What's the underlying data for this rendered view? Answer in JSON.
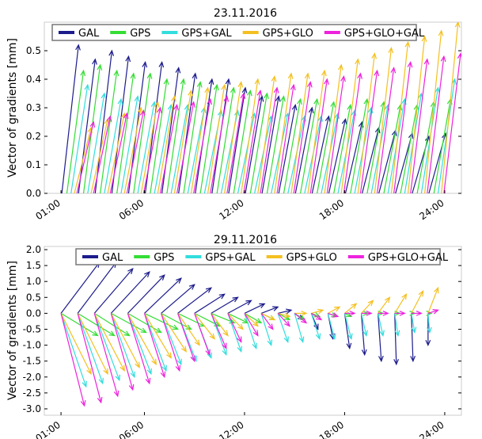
{
  "chart_data": [
    {
      "type": "vector",
      "title": "23.11.2016",
      "ylabel": "Vector of gradients [mm]",
      "xlabel": "",
      "xticks": [
        "01:00",
        "06:00",
        "12:00",
        "18:00",
        "24:00"
      ],
      "xtick_hours": [
        1,
        6,
        12,
        18,
        24
      ],
      "xlim": [
        0,
        25
      ],
      "ylim": [
        0,
        0.6
      ],
      "yticks": [
        0,
        0.1,
        0.2,
        0.3,
        0.4,
        0.5
      ],
      "ytick_labels": [
        "0.0",
        "0.1",
        "0.2",
        "0.3",
        "0.4",
        "0.5"
      ],
      "legend": {
        "position": "top",
        "frame": true
      },
      "series": [
        {
          "name": "GAL",
          "color": "#1c1c8c",
          "dx": 1.0,
          "offset": 0.05,
          "values": [
            0.52,
            0.47,
            0.5,
            0.48,
            0.46,
            0.46,
            0.44,
            0.42,
            0.4,
            0.4,
            0.37,
            0.34,
            0.34,
            0.31,
            0.3,
            0.27,
            0.26,
            0.25,
            0.23,
            0.22,
            0.21,
            0.2,
            0.21
          ]
        },
        {
          "name": "GPS",
          "color": "#33dd33",
          "dx": 1.0,
          "offset": 0.35,
          "values": [
            0.43,
            0.45,
            0.43,
            0.42,
            0.42,
            0.4,
            0.4,
            0.39,
            0.38,
            0.37,
            0.36,
            0.35,
            0.34,
            0.33,
            0.33,
            0.32,
            0.31,
            0.33,
            0.32,
            0.31,
            0.31,
            0.32,
            0.33
          ]
        },
        {
          "name": "GPS+GAL",
          "color": "#33dddd",
          "dx": 1.0,
          "offset": 0.6,
          "values": [
            0.38,
            0.35,
            0.33,
            0.34,
            0.32,
            0.31,
            0.31,
            0.3,
            0.29,
            0.29,
            0.28,
            0.27,
            0.28,
            0.27,
            0.27,
            0.28,
            0.29,
            0.3,
            0.31,
            0.33,
            0.35,
            0.37,
            0.4
          ]
        },
        {
          "name": "GPS+GLO",
          "color": "#f4c020",
          "dx": 1.0,
          "offset": 0.8,
          "values": [
            0.23,
            0.26,
            0.28,
            0.3,
            0.32,
            0.34,
            0.36,
            0.37,
            0.38,
            0.39,
            0.4,
            0.41,
            0.42,
            0.42,
            0.43,
            0.45,
            0.47,
            0.49,
            0.51,
            0.53,
            0.55,
            0.57,
            0.6
          ]
        },
        {
          "name": "GPS+GLO+GAL",
          "color": "#ee22dd",
          "dx": 1.0,
          "offset": 0.95,
          "values": [
            0.25,
            0.27,
            0.28,
            0.29,
            0.3,
            0.31,
            0.32,
            0.33,
            0.34,
            0.35,
            0.36,
            0.37,
            0.38,
            0.39,
            0.4,
            0.41,
            0.42,
            0.43,
            0.44,
            0.46,
            0.47,
            0.48,
            0.49
          ]
        }
      ]
    },
    {
      "type": "vector",
      "title": "29.11.2016",
      "ylabel": "Vector of gradients [mm]",
      "xlabel": "",
      "xticks": [
        "01:00",
        "06:00",
        "12:00",
        "18:00",
        "24:00"
      ],
      "xtick_hours": [
        1,
        6,
        12,
        18,
        24
      ],
      "xlim": [
        0,
        25
      ],
      "ylim": [
        -3.2,
        2.1
      ],
      "yticks": [
        -3.0,
        -2.5,
        -2.0,
        -1.5,
        -1.0,
        -0.5,
        0.0,
        0.5,
        1.0,
        1.5,
        2.0
      ],
      "ytick_labels": [
        "-3.0",
        "-2.5",
        "-2.0",
        "-1.5",
        "-1.0",
        "-0.5",
        "0.0",
        "0.5",
        "1.0",
        "1.5",
        "2.0"
      ],
      "legend": {
        "position": "top",
        "frame": true
      },
      "series": [
        {
          "name": "GAL",
          "color": "#1c1c8c",
          "dx": 2.3,
          "offset": 0,
          "vectors": [
            [
              2.3,
              1.6
            ],
            [
              2.3,
              1.6
            ],
            [
              2.3,
              1.4
            ],
            [
              2.3,
              1.3
            ],
            [
              2.2,
              1.2
            ],
            [
              2.2,
              1.1
            ],
            [
              2.0,
              0.9
            ],
            [
              2.0,
              0.8
            ],
            [
              1.8,
              0.6
            ],
            [
              1.6,
              0.5
            ],
            [
              1.4,
              0.4
            ],
            [
              1.2,
              0.3
            ],
            [
              1.0,
              0.2
            ],
            [
              0.8,
              0.1
            ],
            [
              0.5,
              -0.2
            ],
            [
              0.4,
              -0.5
            ],
            [
              0.3,
              -0.8
            ],
            [
              0.3,
              -1.1
            ],
            [
              0.2,
              -1.3
            ],
            [
              0.2,
              -1.5
            ],
            [
              0.1,
              -1.6
            ],
            [
              0.1,
              -1.5
            ],
            [
              0.0,
              -1.0
            ]
          ]
        },
        {
          "name": "GPS",
          "color": "#33dd33",
          "dx": 2.3,
          "offset": 0,
          "vectors": [
            [
              2.2,
              -0.7
            ],
            [
              2.2,
              -0.7
            ],
            [
              2.1,
              -0.7
            ],
            [
              2.1,
              -0.6
            ],
            [
              2.0,
              -0.6
            ],
            [
              2.0,
              -0.5
            ],
            [
              1.8,
              -0.5
            ],
            [
              1.6,
              -0.4
            ],
            [
              1.5,
              -0.4
            ],
            [
              1.4,
              -0.3
            ],
            [
              1.2,
              -0.3
            ],
            [
              1.0,
              -0.3
            ],
            [
              0.8,
              -0.2
            ],
            [
              0.7,
              -0.2
            ],
            [
              0.6,
              -0.2
            ],
            [
              0.5,
              -0.1
            ],
            [
              0.5,
              -0.1
            ],
            [
              0.4,
              -0.1
            ],
            [
              0.4,
              0.0
            ],
            [
              0.3,
              0.0
            ],
            [
              0.3,
              0.0
            ],
            [
              0.2,
              0.0
            ],
            [
              0.2,
              0.0
            ]
          ]
        },
        {
          "name": "GPS+GAL",
          "color": "#33dddd",
          "dx": 2.3,
          "offset": 0,
          "vectors": [
            [
              1.5,
              -2.3
            ],
            [
              1.5,
              -2.2
            ],
            [
              1.5,
              -2.1
            ],
            [
              1.4,
              -2.0
            ],
            [
              1.4,
              -1.9
            ],
            [
              1.3,
              -1.8
            ],
            [
              1.2,
              -1.6
            ],
            [
              1.1,
              -1.5
            ],
            [
              1.0,
              -1.4
            ],
            [
              0.9,
              -1.3
            ],
            [
              0.8,
              -1.2
            ],
            [
              0.7,
              -1.1
            ],
            [
              0.6,
              -1.0
            ],
            [
              0.6,
              -0.9
            ],
            [
              0.5,
              -0.9
            ],
            [
              0.5,
              -0.8
            ],
            [
              0.4,
              -0.8
            ],
            [
              0.4,
              -0.8
            ],
            [
              0.3,
              -0.7
            ],
            [
              0.3,
              -0.7
            ],
            [
              0.2,
              -0.7
            ],
            [
              0.2,
              -0.6
            ],
            [
              0.1,
              -0.6
            ]
          ]
        },
        {
          "name": "GPS+GLO",
          "color": "#f4c020",
          "dx": 2.3,
          "offset": 0,
          "vectors": [
            [
              1.8,
              -1.9
            ],
            [
              1.8,
              -1.9
            ],
            [
              1.8,
              -1.8
            ],
            [
              1.7,
              -1.7
            ],
            [
              1.7,
              -1.6
            ],
            [
              1.6,
              -1.4
            ],
            [
              1.5,
              -1.2
            ],
            [
              1.3,
              -1.0
            ],
            [
              1.2,
              -0.8
            ],
            [
              1.0,
              -0.7
            ],
            [
              0.9,
              -0.5
            ],
            [
              0.8,
              -0.4
            ],
            [
              0.8,
              -0.2
            ],
            [
              0.7,
              -0.1
            ],
            [
              0.7,
              0.0
            ],
            [
              0.7,
              0.1
            ],
            [
              0.7,
              0.2
            ],
            [
              0.7,
              0.3
            ],
            [
              0.7,
              0.4
            ],
            [
              0.7,
              0.5
            ],
            [
              0.7,
              0.6
            ],
            [
              0.7,
              0.7
            ],
            [
              0.6,
              0.8
            ]
          ]
        },
        {
          "name": "GPS+GLO+GAL",
          "color": "#ee22dd",
          "dx": 2.3,
          "offset": 0,
          "vectors": [
            [
              1.4,
              -2.9
            ],
            [
              1.4,
              -2.8
            ],
            [
              1.4,
              -2.6
            ],
            [
              1.3,
              -2.4
            ],
            [
              1.3,
              -2.2
            ],
            [
              1.2,
              -2.0
            ],
            [
              1.1,
              -1.8
            ],
            [
              1.0,
              -1.5
            ],
            [
              0.9,
              -1.3
            ],
            [
              0.9,
              -1.1
            ],
            [
              0.8,
              -0.9
            ],
            [
              0.8,
              -0.7
            ],
            [
              0.7,
              -0.5
            ],
            [
              0.7,
              -0.4
            ],
            [
              0.7,
              -0.3
            ],
            [
              0.6,
              -0.2
            ],
            [
              0.6,
              -0.1
            ],
            [
              0.6,
              0.0
            ],
            [
              0.6,
              0.0
            ],
            [
              0.6,
              0.0
            ],
            [
              0.6,
              0.0
            ],
            [
              0.6,
              0.0
            ],
            [
              0.6,
              0.1
            ]
          ]
        }
      ]
    }
  ]
}
